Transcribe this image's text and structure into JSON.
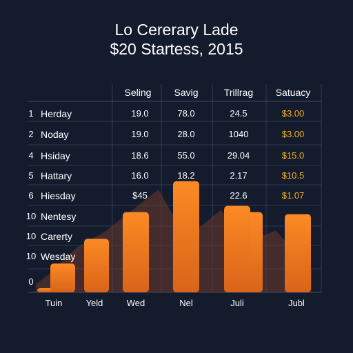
{
  "title": "Lo Cererary Lade",
  "subtitle": "$20 Startess, 2015",
  "colors": {
    "background": "#141b2d",
    "bar": "#fb8a24",
    "bar_dark": "#d9641a",
    "area": "#6b3a2e",
    "money_text": "#f2b21b",
    "grid": "#3a4460"
  },
  "table": {
    "columns": [
      "Seling",
      "Savig",
      "Trillrag",
      "Satuacy"
    ],
    "rows": [
      {
        "num": "1",
        "label": "Herday",
        "cells": [
          "19.0",
          "78.0",
          "24.5",
          "$3.00"
        ]
      },
      {
        "num": "2",
        "label": "Noday",
        "cells": [
          "19.0",
          "28.0",
          "1040",
          "$3.00"
        ]
      },
      {
        "num": "4",
        "label": "Hsiday",
        "cells": [
          "18.6",
          "55.0",
          "29.04",
          "$15.0"
        ]
      },
      {
        "num": "5",
        "label": "Hattary",
        "cells": [
          "16.0",
          "18.2",
          "2.17",
          "$10.5"
        ]
      },
      {
        "num": "6",
        "label": "Hiesday",
        "cells": [
          "$45",
          "",
          "22.6",
          "$1.07"
        ]
      },
      {
        "num": "10",
        "label": "Nentesy",
        "cells": [
          "",
          "",
          "",
          ""
        ]
      },
      {
        "num": "10",
        "label": "Carerty",
        "cells": [
          "",
          "",
          "",
          ""
        ]
      },
      {
        "num": "10",
        "label": "Wesday",
        "cells": [
          "",
          "",
          "",
          ""
        ]
      },
      {
        "num": "0",
        "label": "",
        "cells": [
          "",
          "",
          "",
          ""
        ]
      }
    ]
  },
  "chart_data": {
    "type": "bar",
    "title": "Lo Cererary Lade",
    "subtitle": "$20 Startess, 2015",
    "categories": [
      "Tuin",
      "Yeld",
      "Wed",
      "Nel",
      "Juli",
      "Jubl"
    ],
    "values": [
      1.4,
      2.2,
      3.9,
      5.4,
      4.2,
      3.8
    ],
    "extra_bars": [
      {
        "after_category": "Tuin",
        "value": 0.2
      },
      {
        "after_category": "Yeld",
        "value": 2.6
      },
      {
        "after_category": "Juli",
        "value": 3.9
      }
    ],
    "background_area": [
      0.4,
      0.9,
      2.2,
      2.9,
      5.0,
      2.6,
      4.0,
      2.5,
      3.0,
      1.1
    ],
    "ylim": [
      0,
      6.5
    ],
    "grid": true,
    "legend": "none"
  }
}
